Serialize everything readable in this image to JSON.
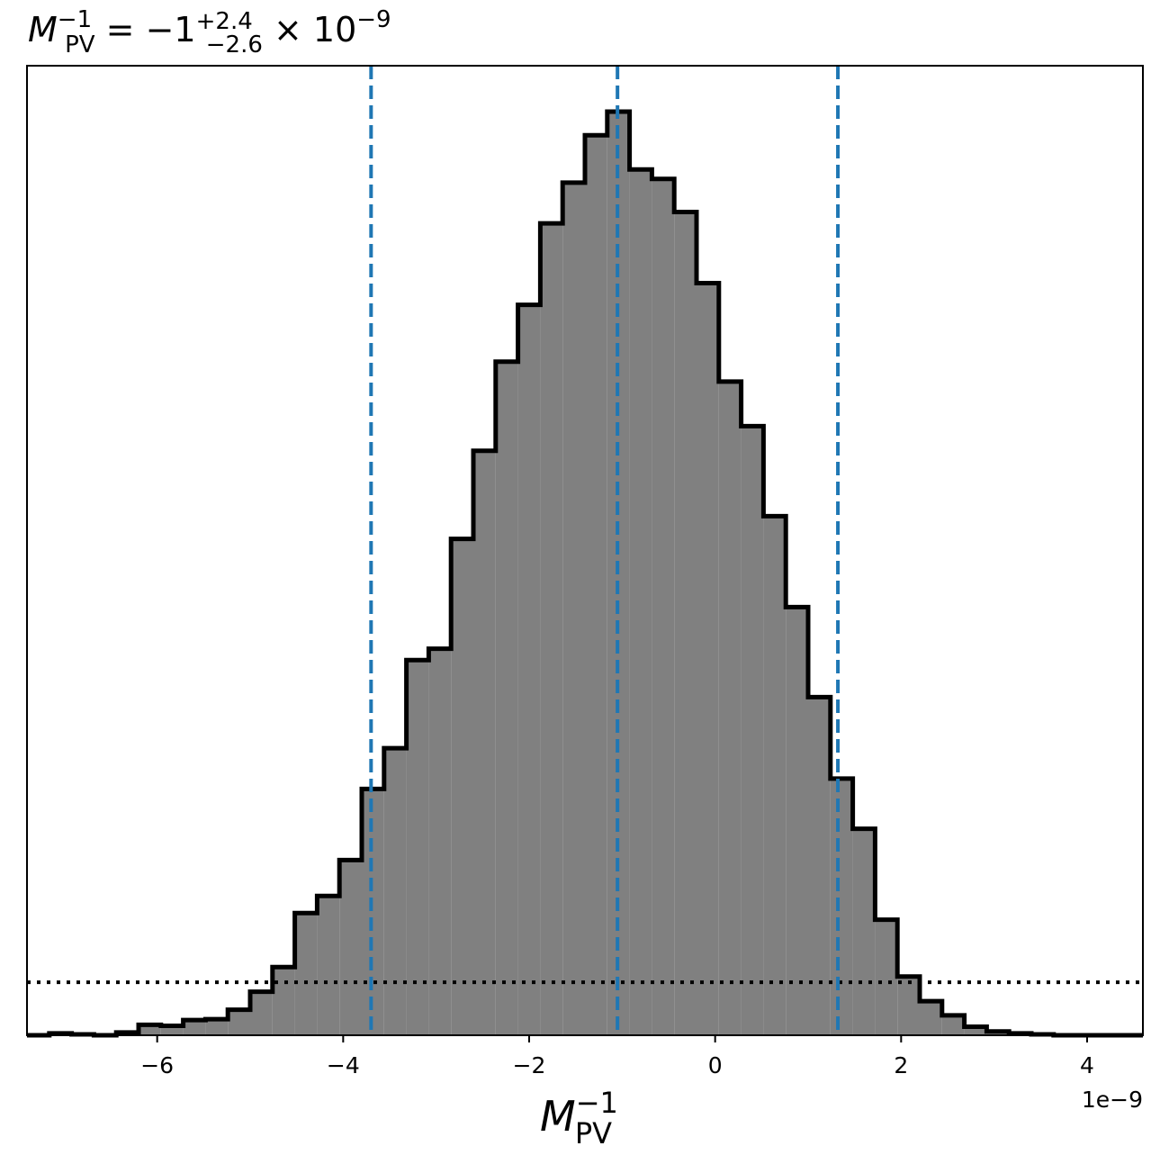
{
  "chart_data": {
    "type": "histogram",
    "title": {
      "symbol": "M",
      "symbol_sub": "PV",
      "symbol_sup": "−1",
      "equals": " = ",
      "value": "−1",
      "upper_err": "+2.4",
      "lower_err": "−2.6",
      "times": " × 10",
      "exponent": "−9"
    },
    "xlabel": {
      "symbol": "M",
      "sub": "PV",
      "sup": "−1"
    },
    "x_scale_label": "1e−9",
    "xlim": [
      -7.4,
      4.6
    ],
    "ylim": [
      0,
      1.0
    ],
    "x_ticks": [
      -6,
      -4,
      -2,
      0,
      2,
      4
    ],
    "x_tick_labels": [
      "−6",
      "−4",
      "−2",
      "0",
      "2",
      "4"
    ],
    "bins": {
      "edges": [
        -7.4,
        -7.16,
        -6.92,
        -6.68,
        -6.44,
        -6.2,
        -5.96,
        -5.72,
        -5.48,
        -5.24,
        -5.0,
        -4.76,
        -4.52,
        -4.28,
        -4.04,
        -3.8,
        -3.56,
        -3.32,
        -3.08,
        -2.84,
        -2.6,
        -2.36,
        -2.12,
        -1.88,
        -1.64,
        -1.4,
        -1.16,
        -0.92,
        -0.68,
        -0.44,
        -0.2,
        0.04,
        0.28,
        0.52,
        0.76,
        1.0,
        1.24,
        1.48,
        1.72,
        1.96,
        2.2,
        2.44,
        2.68,
        2.92,
        3.16,
        3.4,
        3.64,
        3.88,
        4.12,
        4.36,
        4.6
      ],
      "counts": [
        0.0,
        0.002,
        0.001,
        0.0,
        0.003,
        0.011,
        0.01,
        0.016,
        0.017,
        0.027,
        0.046,
        0.072,
        0.129,
        0.147,
        0.185,
        0.26,
        0.303,
        0.396,
        0.408,
        0.524,
        0.617,
        0.711,
        0.771,
        0.857,
        0.9,
        0.95,
        0.975,
        0.914,
        0.904,
        0.869,
        0.794,
        0.69,
        0.643,
        0.548,
        0.452,
        0.357,
        0.271,
        0.218,
        0.122,
        0.062,
        0.036,
        0.021,
        0.009,
        0.004,
        0.002,
        0.001,
        0.0,
        0.0,
        0.0,
        0.0
      ]
    },
    "quantile_lines": [
      -3.7,
      -1.05,
      1.32
    ],
    "quantile_color": "#1f77b4",
    "threshold_line": 0.056,
    "fill_color": "#808080",
    "edge_color": "#000000",
    "grid": false,
    "legend": "none"
  }
}
